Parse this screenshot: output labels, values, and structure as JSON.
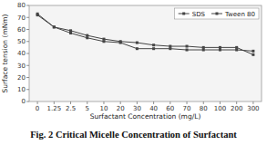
{
  "chart_data": {
    "type": "line",
    "title": "Fig. 2 Critical Micelle Concentration of Surfactant",
    "x_label": "Surfactant Concentration (mg/L)",
    "y_label": "Surface tension (mNm)",
    "categories": [
      "0",
      "1.25",
      "2.5",
      "5",
      "10",
      "20",
      "30",
      "40",
      "60",
      "70",
      "80",
      "100",
      "200",
      "300"
    ],
    "series": [
      {
        "name": "SDS",
        "color": "#444444",
        "marker": "square",
        "values": [
          72,
          62,
          57,
          53,
          50,
          49,
          44,
          44,
          44,
          43,
          43,
          43,
          43,
          42
        ]
      },
      {
        "name": "Tween 80",
        "color": "#444444",
        "marker": "square",
        "values": [
          73,
          62,
          59,
          55,
          52,
          50,
          49,
          47,
          46,
          46,
          45,
          45,
          45,
          39
        ]
      }
    ],
    "ylim": [
      0,
      80
    ],
    "yticks": [
      0,
      10,
      20,
      30,
      40,
      50,
      60,
      70,
      80
    ],
    "grid": false,
    "legend": "upper right"
  }
}
